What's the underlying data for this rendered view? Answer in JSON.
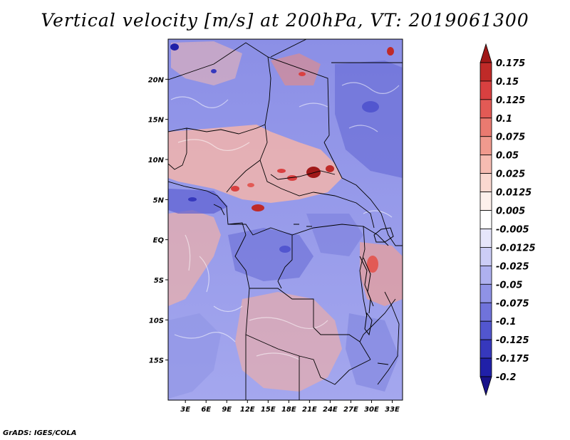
{
  "title": "Vertical velocity [m/s] at 200hPa, VT: 2019061300",
  "credit": "GrADS: IGES/COLA",
  "map": {
    "lat_labels": [
      {
        "text": "20N",
        "lat": 20
      },
      {
        "text": "15N",
        "lat": 15
      },
      {
        "text": "10N",
        "lat": 10
      },
      {
        "text": "5N",
        "lat": 5
      },
      {
        "text": "EQ",
        "lat": 0
      },
      {
        "text": "5S",
        "lat": -5
      },
      {
        "text": "10S",
        "lat": -10
      },
      {
        "text": "15S",
        "lat": -15
      }
    ],
    "lon_labels": [
      {
        "text": "3E",
        "lon": 3
      },
      {
        "text": "6E",
        "lon": 6
      },
      {
        "text": "9E",
        "lon": 9
      },
      {
        "text": "12E",
        "lon": 12
      },
      {
        "text": "15E",
        "lon": 15
      },
      {
        "text": "18E",
        "lon": 18
      },
      {
        "text": "21E",
        "lon": 21
      },
      {
        "text": "24E",
        "lon": 24
      },
      {
        "text": "27E",
        "lon": 27
      },
      {
        "text": "30E",
        "lon": 30
      },
      {
        "text": "33E",
        "lon": 33
      }
    ],
    "lon_range": [
      0.5,
      34.5
    ],
    "lat_range": [
      -20,
      25
    ]
  },
  "colorbar": {
    "levels": [
      "0.175",
      "0.15",
      "0.125",
      "0.1",
      "0.075",
      "0.05",
      "0.025",
      "0.0125",
      "0.005",
      "-0.005",
      "-0.0125",
      "-0.025",
      "-0.05",
      "-0.075",
      "-0.1",
      "-0.125",
      "-0.175",
      "-0.2"
    ],
    "colors": [
      "#a01818",
      "#bf2a28",
      "#d94040",
      "#e25a55",
      "#ea7a70",
      "#f09a8e",
      "#f6bcb2",
      "#fad8d0",
      "#fdf0ec",
      "#ffffff",
      "#e6e6fb",
      "#cccdf6",
      "#aeb0ef",
      "#8f92e6",
      "#7073db",
      "#5256cf",
      "#3638bd",
      "#2020a8",
      "#18128a"
    ]
  }
}
